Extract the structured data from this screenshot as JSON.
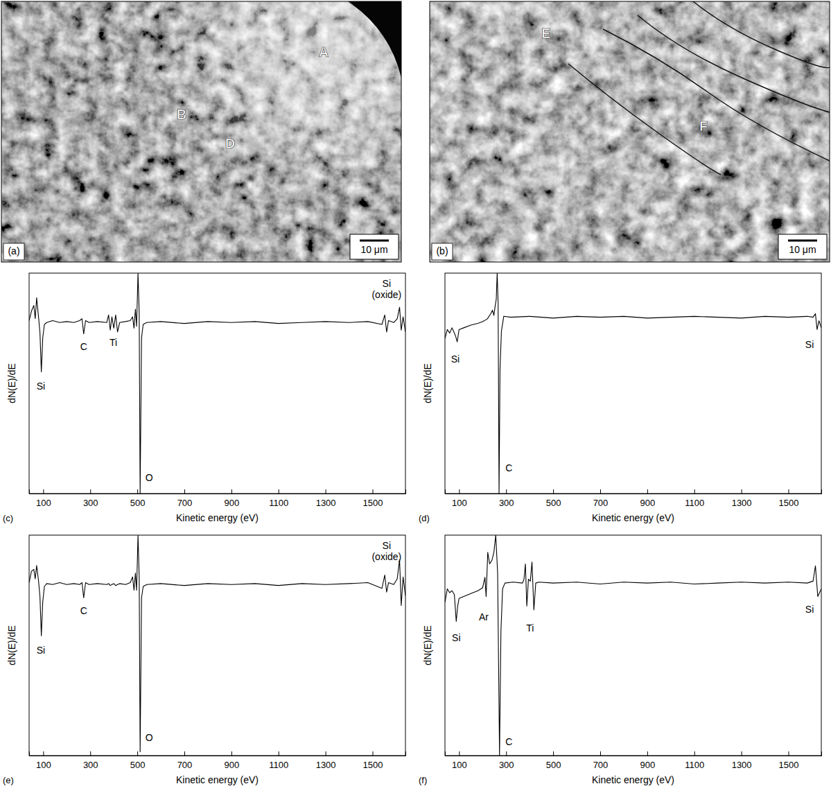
{
  "images": [
    {
      "panel": "(a)",
      "labels": [
        "A",
        "B",
        "D"
      ],
      "scale_bar": "10 μm"
    },
    {
      "panel": "(b)",
      "labels": [
        "E",
        "F"
      ],
      "scale_bar": "10 μm"
    }
  ],
  "chart_data": [
    {
      "type": "line",
      "panel": "(c)",
      "xlabel": "Kinetic energy (eV)",
      "ylabel": "dN(E)/dE",
      "xlim": [
        40,
        1640
      ],
      "xticks": [
        100,
        300,
        500,
        700,
        900,
        1100,
        1300,
        1500
      ],
      "ylim": [
        -9,
        2.6
      ],
      "tick_labels": "x",
      "color": "#000000",
      "x": [
        40,
        50,
        60,
        66,
        72,
        80,
        86,
        92,
        98,
        105,
        115,
        140,
        170,
        200,
        230,
        255,
        265,
        272,
        280,
        295,
        330,
        370,
        378,
        385,
        392,
        400,
        408,
        416,
        425,
        450,
        470,
        480,
        486,
        492,
        497,
        503,
        508,
        512,
        518,
        525,
        540,
        600,
        700,
        800,
        900,
        1000,
        1100,
        1200,
        1300,
        1400,
        1480,
        1540,
        1552,
        1560,
        1568,
        1590,
        1605,
        1615,
        1622,
        1630,
        1640
      ],
      "values": [
        0.1,
        0.6,
        0.9,
        0.2,
        1.3,
        0.3,
        -0.5,
        -2.6,
        -0.8,
        -0.1,
        0.0,
        0.1,
        0.0,
        0.05,
        0.0,
        0.1,
        0.2,
        -0.6,
        0.1,
        0.0,
        0.05,
        0.0,
        0.4,
        -0.4,
        0.3,
        -0.3,
        0.4,
        -0.5,
        0.0,
        0.05,
        0.1,
        0.3,
        -0.3,
        0.7,
        -0.2,
        2.6,
        0.5,
        -9,
        -0.8,
        -0.1,
        0.0,
        0.05,
        -0.05,
        0.05,
        0.0,
        0.05,
        -0.05,
        0.0,
        0.05,
        0.0,
        0.05,
        -0.1,
        0.4,
        -0.5,
        0.1,
        0.0,
        0.2,
        0.8,
        -0.4,
        0.3,
        -0.5
      ],
      "annotations": [
        {
          "text": "Si",
          "x": 90,
          "y": -3.4
        },
        {
          "text": "C",
          "x": 272,
          "y": -1.3
        },
        {
          "text": "Ti",
          "x": 398,
          "y": -1.1
        },
        {
          "text": "O",
          "x": 550,
          "y": -8.2
        },
        {
          "text": "Si (oxide)",
          "x": 1560,
          "y": 2.0
        }
      ]
    },
    {
      "type": "line",
      "panel": "(d)",
      "xlabel": "Kinetic energy (eV)",
      "ylabel": "dN(E)/dE",
      "xlim": [
        40,
        1640
      ],
      "xticks": [
        100,
        300,
        500,
        700,
        900,
        1100,
        1300,
        1500
      ],
      "ylim": [
        -10,
        2.5
      ],
      "tick_labels": "x",
      "color": "#000000",
      "x": [
        40,
        50,
        60,
        70,
        80,
        86,
        92,
        100,
        120,
        150,
        180,
        200,
        220,
        235,
        242,
        248,
        253,
        258,
        262,
        266,
        270,
        274,
        280,
        290,
        320,
        400,
        500,
        600,
        700,
        800,
        900,
        1000,
        1100,
        1200,
        1300,
        1400,
        1500,
        1580,
        1605,
        1615,
        1622,
        1630,
        1640
      ],
      "values": [
        -1.2,
        -0.7,
        -0.9,
        -0.6,
        -0.9,
        -1.1,
        -1.4,
        -0.7,
        -0.6,
        -0.45,
        -0.35,
        -0.25,
        -0.1,
        0.2,
        0.4,
        0.1,
        0.6,
        1.0,
        2.5,
        0.8,
        -10,
        -3,
        -0.8,
        0.05,
        0.0,
        0.05,
        -0.05,
        0.05,
        0.0,
        0.05,
        -0.05,
        0.0,
        0.05,
        0.0,
        -0.05,
        0.05,
        0.0,
        0.05,
        0.0,
        0.2,
        -0.7,
        -0.2,
        -0.6
      ],
      "annotations": [
        {
          "text": "Si",
          "x": 84,
          "y": -2.4
        },
        {
          "text": "C",
          "x": 312,
          "y": -8.6
        },
        {
          "text": "Si",
          "x": 1590,
          "y": -1.6
        }
      ]
    },
    {
      "type": "line",
      "panel": "(e)",
      "xlabel": "Kinetic energy (eV)",
      "ylabel": "dN(E)/dE",
      "xlim": [
        40,
        1640
      ],
      "xticks": [
        100,
        300,
        500,
        700,
        900,
        1100,
        1300,
        1500
      ],
      "ylim": [
        -9,
        2.6
      ],
      "tick_labels": "x",
      "color": "#000000",
      "x": [
        40,
        50,
        60,
        66,
        72,
        80,
        86,
        92,
        98,
        105,
        115,
        140,
        170,
        200,
        230,
        255,
        265,
        272,
        280,
        295,
        330,
        370,
        378,
        385,
        392,
        400,
        408,
        416,
        425,
        450,
        470,
        480,
        486,
        492,
        497,
        503,
        508,
        512,
        518,
        525,
        540,
        600,
        700,
        800,
        900,
        1000,
        1100,
        1200,
        1300,
        1400,
        1480,
        1540,
        1552,
        1560,
        1568,
        1590,
        1605,
        1615,
        1622,
        1630,
        1640
      ],
      "values": [
        0.1,
        0.7,
        0.8,
        0.3,
        1.0,
        0.2,
        -0.6,
        -2.7,
        -0.9,
        -0.1,
        0.05,
        0.0,
        0.1,
        0.0,
        0.05,
        0.0,
        0.1,
        -0.7,
        0.1,
        0.0,
        0.05,
        0.0,
        0.05,
        -0.05,
        0.0,
        0.05,
        -0.05,
        0.0,
        0.05,
        0.0,
        0.1,
        0.4,
        -0.3,
        0.6,
        -0.3,
        2.6,
        0.4,
        -8.8,
        -0.7,
        -0.1,
        0.0,
        0.05,
        -0.05,
        0.05,
        0.0,
        0.05,
        -0.05,
        0.05,
        0.0,
        0.05,
        0.1,
        -0.2,
        0.5,
        -0.4,
        0.1,
        0.0,
        0.3,
        1.3,
        -1.1,
        0.4,
        -0.6
      ],
      "annotations": [
        {
          "text": "Si",
          "x": 90,
          "y": -3.5
        },
        {
          "text": "C",
          "x": 272,
          "y": -1.4
        },
        {
          "text": "O",
          "x": 550,
          "y": -8.1
        },
        {
          "text": "Si (oxide)",
          "x": 1560,
          "y": 2.0
        }
      ]
    },
    {
      "type": "line",
      "panel": "(f)",
      "xlabel": "Kinetic energy (eV)",
      "ylabel": "dN(E)/dE",
      "xlim": [
        40,
        1640
      ],
      "xticks": [
        100,
        300,
        500,
        700,
        900,
        1100,
        1300,
        1500
      ],
      "ylim": [
        -9,
        2.5
      ],
      "tick_labels": "x",
      "color": "#000000",
      "x": [
        40,
        50,
        60,
        70,
        80,
        88,
        94,
        100,
        120,
        150,
        180,
        200,
        210,
        215,
        222,
        230,
        240,
        248,
        256,
        264,
        272,
        278,
        285,
        295,
        330,
        370,
        376,
        382,
        388,
        395,
        403,
        410,
        418,
        426,
        440,
        500,
        600,
        700,
        800,
        900,
        1000,
        1100,
        1200,
        1300,
        1400,
        1500,
        1580,
        1605,
        1615,
        1625,
        1640
      ],
      "values": [
        -1.0,
        -0.3,
        -0.5,
        -0.4,
        -0.6,
        -2.0,
        -1.2,
        -0.8,
        -0.7,
        -0.55,
        -0.4,
        -0.25,
        0.3,
        -0.7,
        1.6,
        1.0,
        1.2,
        1.6,
        2.5,
        0.5,
        -9,
        -2.5,
        -0.3,
        0.0,
        0.05,
        0.0,
        0.2,
        1.0,
        -1.2,
        0.2,
        0.1,
        1.1,
        -1.4,
        0.0,
        0.05,
        0.0,
        0.05,
        -0.05,
        0.05,
        0.0,
        0.05,
        -0.05,
        0.0,
        0.05,
        0.0,
        0.05,
        0.0,
        0.1,
        0.9,
        -0.7,
        -0.3
      ],
      "annotations": [
        {
          "text": "Si",
          "x": 88,
          "y": -2.9
        },
        {
          "text": "Ar",
          "x": 205,
          "y": -1.8
        },
        {
          "text": "Ti",
          "x": 402,
          "y": -2.4
        },
        {
          "text": "C",
          "x": 312,
          "y": -8.3
        },
        {
          "text": "Si",
          "x": 1590,
          "y": -1.4
        }
      ]
    }
  ]
}
